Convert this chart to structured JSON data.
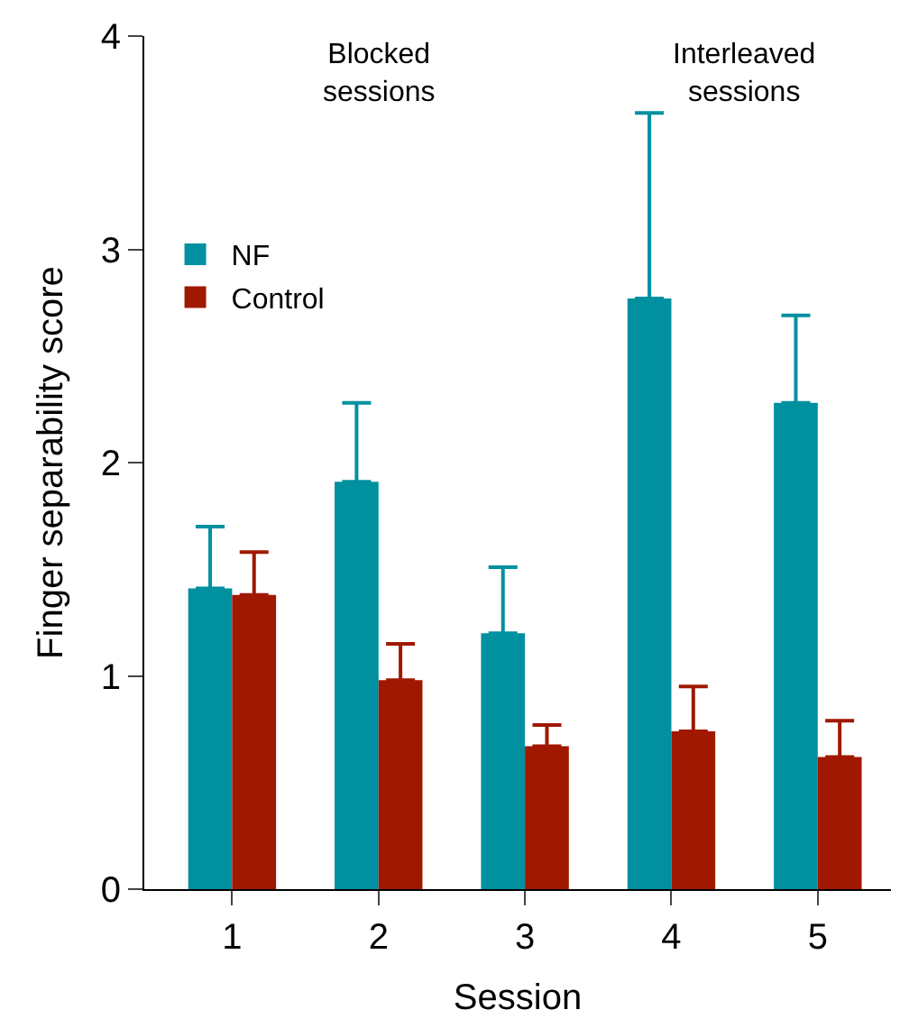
{
  "chart_data": {
    "type": "bar",
    "xlabel": "Session",
    "ylabel": "Finger separability score",
    "categories": [
      "1",
      "2",
      "3",
      "4",
      "5"
    ],
    "series": [
      {
        "name": "NF",
        "color": "#0090a0",
        "values": [
          1.41,
          1.91,
          1.2,
          2.77,
          2.28
        ],
        "errors": [
          [
            1.41,
            1.7
          ],
          [
            1.91,
            2.28
          ],
          [
            1.2,
            1.51
          ],
          [
            2.77,
            3.64
          ],
          [
            2.28,
            2.69
          ]
        ]
      },
      {
        "name": "Control",
        "color": "#a01800",
        "values": [
          1.38,
          0.98,
          0.67,
          0.74,
          0.62
        ],
        "errors": [
          [
            1.38,
            1.58
          ],
          [
            0.98,
            1.15
          ],
          [
            0.67,
            0.77
          ],
          [
            0.74,
            0.95
          ],
          [
            0.62,
            0.79
          ]
        ]
      }
    ],
    "ylim": [
      0,
      4
    ],
    "yticks": [
      0,
      1,
      2,
      3,
      4
    ],
    "annotations": [
      "Blocked\nsessions",
      "Interleaved\nsessions"
    ],
    "legend": "top left"
  }
}
